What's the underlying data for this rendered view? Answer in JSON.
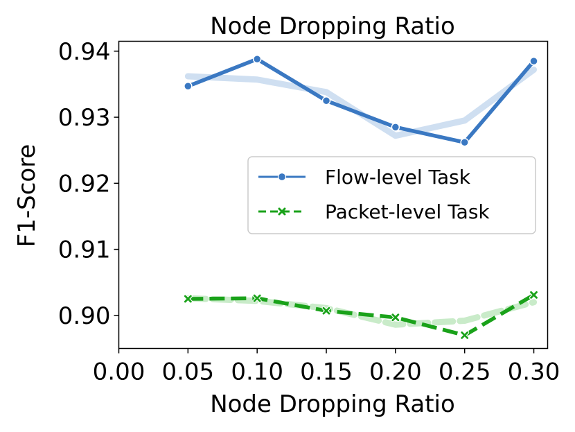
{
  "chart_data": {
    "type": "line",
    "title": "Node Dropping Ratio",
    "xlabel": "Node Dropping Ratio",
    "ylabel": "F1-Score",
    "xlim": [
      0.0,
      0.31
    ],
    "ylim": [
      0.895,
      0.9415
    ],
    "x_ticks": [
      "0.00",
      "0.05",
      "0.10",
      "0.15",
      "0.20",
      "0.25",
      "0.30"
    ],
    "y_ticks": [
      "0.90",
      "0.91",
      "0.92",
      "0.93",
      "0.94"
    ],
    "x": [
      0.05,
      0.1,
      0.15,
      0.2,
      0.25,
      0.3
    ],
    "grid": false,
    "legend_position": "center-right",
    "series": [
      {
        "name": "Flow-level Task",
        "values": [
          0.9347,
          0.9388,
          0.9325,
          0.9285,
          0.9262,
          0.9385
        ],
        "smoothed": [
          0.9362,
          0.9357,
          0.9338,
          0.9272,
          0.9295,
          0.9372
        ],
        "color": "#3a78c2",
        "smooth_color": "#cfdff1",
        "marker": "circle",
        "style": "solid"
      },
      {
        "name": "Packet-level Task",
        "values": [
          0.9025,
          0.9026,
          0.9007,
          0.8997,
          0.897,
          0.9031
        ],
        "smoothed": [
          0.9026,
          0.9022,
          0.9011,
          0.8986,
          0.8992,
          0.902
        ],
        "color": "#1aa21a",
        "smooth_color": "#c9ebc9",
        "marker": "x",
        "style": "dashed"
      }
    ]
  }
}
